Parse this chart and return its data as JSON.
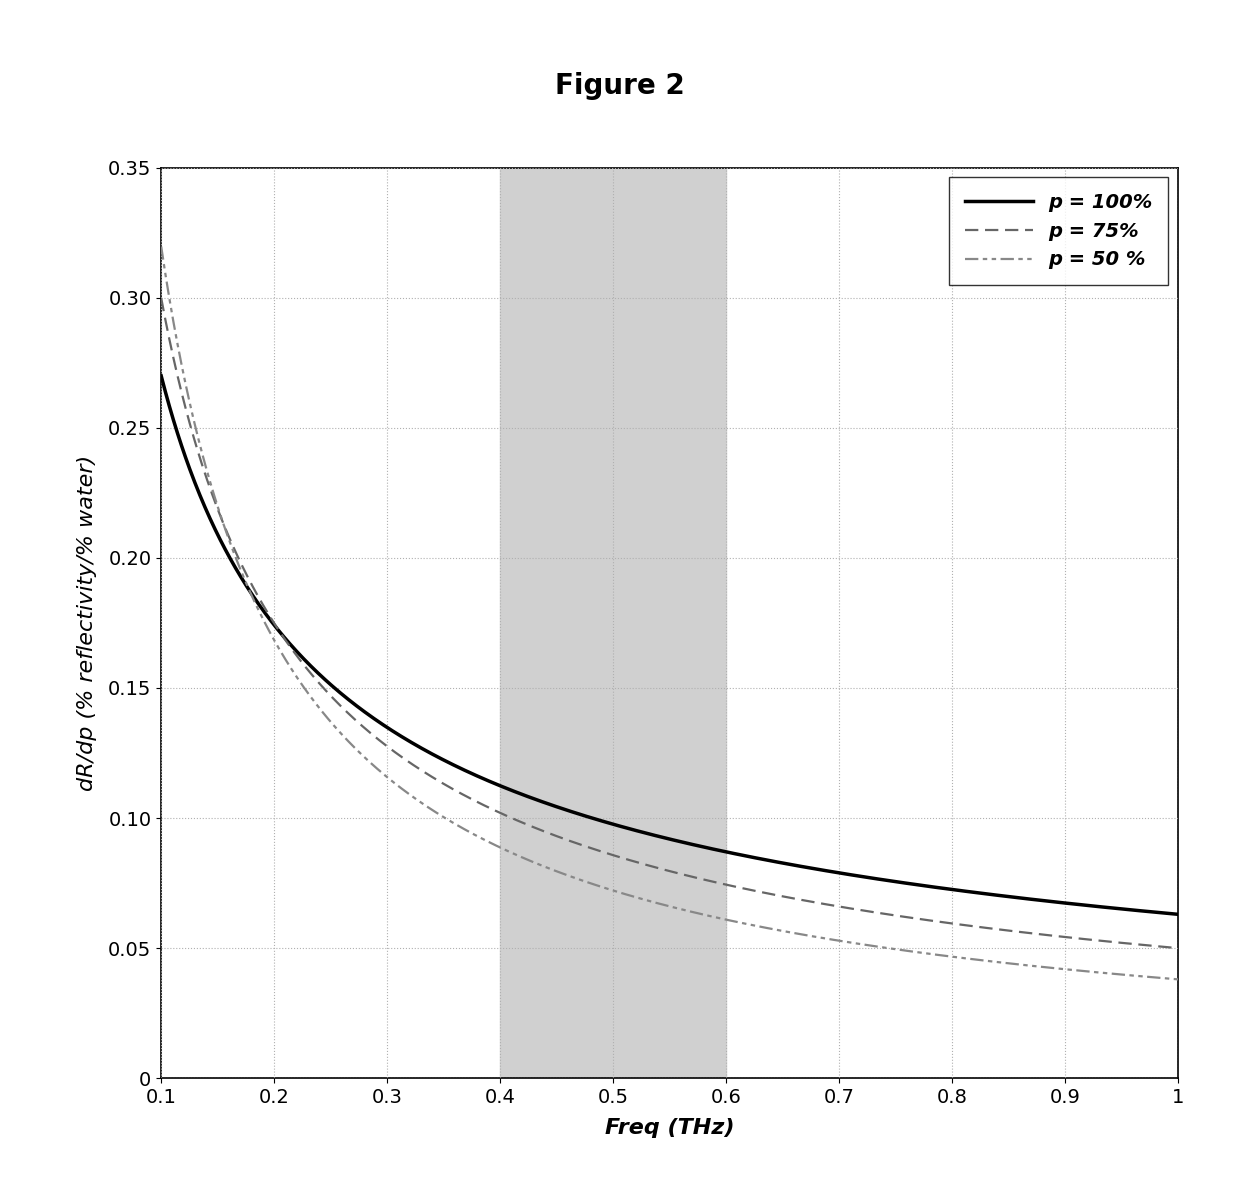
{
  "title": "Figure 2",
  "xlabel": "Freq (THz)",
  "ylabel": "dR/dp (% reflectivity/% water)",
  "xlim": [
    0.1,
    1.0
  ],
  "ylim": [
    0.0,
    0.35
  ],
  "xticks": [
    0.1,
    0.2,
    0.3,
    0.4,
    0.5,
    0.6,
    0.7,
    0.8,
    0.9,
    1.0
  ],
  "yticks": [
    0.0,
    0.05,
    0.1,
    0.15,
    0.2,
    0.25,
    0.3,
    0.35
  ],
  "shaded_region": [
    0.4,
    0.6
  ],
  "shaded_color": "#d0d0d0",
  "grid_color": "#b0b0b0",
  "background_color": "#ffffff",
  "curves": [
    {
      "label": "p = 100%",
      "A": 0.0825,
      "B": 0.194,
      "alpha": 0.65,
      "color": "#000000",
      "linewidth": 2.5
    },
    {
      "label": "p = 75%",
      "A": 0.0825,
      "B": 0.232,
      "alpha": 0.8,
      "color": "#666666",
      "linewidth": 1.6
    },
    {
      "label": "p = 50 %",
      "A": 0.0825,
      "B": 0.265,
      "alpha": 0.92,
      "color": "#888888",
      "linewidth": 1.6
    }
  ],
  "legend_loc": "upper right",
  "title_fontsize": 20,
  "axis_label_fontsize": 16,
  "tick_fontsize": 14,
  "legend_fontsize": 14
}
